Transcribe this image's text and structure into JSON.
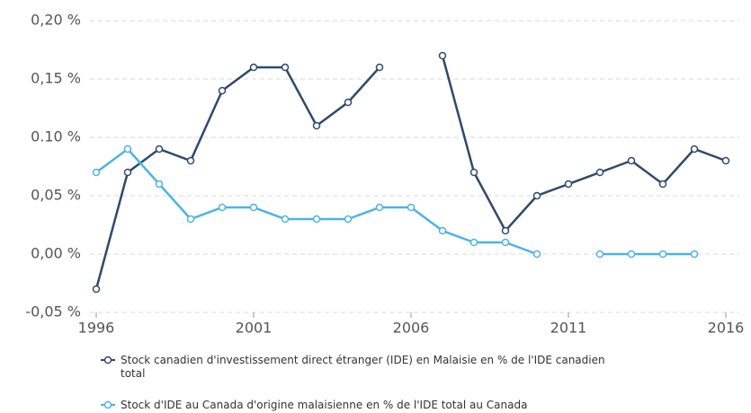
{
  "chart_data": {
    "type": "line",
    "x": [
      1996,
      1997,
      1998,
      1999,
      2000,
      2001,
      2002,
      2003,
      2004,
      2005,
      2006,
      2007,
      2008,
      2009,
      2010,
      2011,
      2012,
      2013,
      2014,
      2015,
      2016
    ],
    "series": [
      {
        "name": "Stock canadien d'investissement direct étranger (IDE) en Malaisie en % de l'IDE canadien total",
        "color": "#2e4a6b",
        "values": [
          -0.03,
          0.07,
          0.09,
          0.08,
          0.14,
          0.16,
          0.16,
          0.11,
          0.13,
          0.16,
          null,
          0.17,
          0.07,
          0.02,
          0.05,
          0.06,
          0.07,
          0.08,
          0.06,
          0.09,
          0.08
        ]
      },
      {
        "name": "Stock d'IDE au Canada d'origine malaisienne en % de l'IDE total au Canada",
        "color": "#4db3e6",
        "values": [
          0.07,
          0.09,
          0.06,
          0.03,
          0.04,
          0.04,
          0.03,
          0.03,
          0.03,
          0.04,
          0.04,
          0.02,
          0.01,
          0.01,
          0.0,
          null,
          0,
          0,
          0,
          0,
          null
        ]
      }
    ],
    "xlim": [
      1996,
      2016
    ],
    "xticks": [
      1996,
      2001,
      2006,
      2011,
      2016
    ],
    "ylim": [
      -0.05,
      0.2
    ],
    "yticks": [
      {
        "value": -0.05,
        "label": "-0,05 %"
      },
      {
        "value": 0,
        "label": "0,00 %"
      },
      {
        "value": 0.05,
        "label": "0,05 %"
      },
      {
        "value": 0.1,
        "label": "0.10 %"
      },
      {
        "value": 0.15,
        "label": "0,15 %"
      },
      {
        "value": 0.2,
        "label": "0,20 %"
      }
    ],
    "grid": true,
    "legend": "bottom"
  }
}
